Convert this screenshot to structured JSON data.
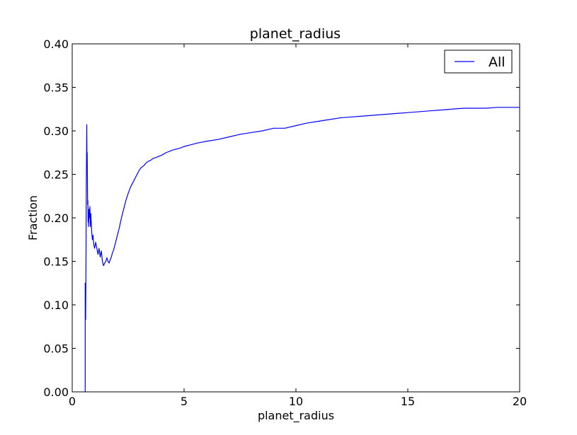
{
  "chart_data": {
    "type": "line",
    "title": "planet_radius",
    "xlabel": "planet_radius",
    "ylabel": "Fraction",
    "xlim": [
      0,
      20
    ],
    "ylim": [
      0,
      0.4
    ],
    "x_ticks": [
      "0",
      "5",
      "10",
      "15",
      "20"
    ],
    "y_ticks": [
      "0.00",
      "0.05",
      "0.10",
      "0.15",
      "0.20",
      "0.25",
      "0.30",
      "0.35",
      "0.40"
    ],
    "grid": false,
    "legend_position": "top-right",
    "series": [
      {
        "name": "All",
        "color": "#0000ff",
        "x": [
          0.58,
          0.58,
          0.59,
          0.6,
          0.61,
          0.62,
          0.63,
          0.64,
          0.65,
          0.66,
          0.67,
          0.68,
          0.69,
          0.7,
          0.71,
          0.72,
          0.73,
          0.75,
          0.77,
          0.79,
          0.81,
          0.83,
          0.85,
          0.87,
          0.9,
          0.93,
          0.96,
          1.0,
          1.05,
          1.1,
          1.15,
          1.2,
          1.25,
          1.3,
          1.35,
          1.4,
          1.45,
          1.5,
          1.55,
          1.6,
          1.65,
          1.7,
          1.75,
          1.8,
          1.85,
          1.9,
          2.0,
          2.1,
          2.2,
          2.3,
          2.4,
          2.5,
          2.6,
          2.7,
          2.8,
          2.9,
          3.0,
          3.1,
          3.2,
          3.3,
          3.4,
          3.5,
          3.6,
          3.8,
          4.0,
          4.2,
          4.5,
          4.8,
          5.0,
          5.3,
          5.6,
          6.0,
          6.5,
          7.0,
          7.5,
          8.0,
          8.5,
          9.0,
          9.5,
          10.0,
          10.5,
          11.0,
          11.5,
          12.0,
          12.5,
          13.0,
          13.5,
          14.0,
          14.5,
          15.0,
          15.5,
          16.0,
          16.5,
          17.0,
          17.5,
          18.0,
          18.5,
          19.0,
          19.5,
          20.0
        ],
        "values": [
          0.0,
          0.125,
          0.105,
          0.083,
          0.12,
          0.17,
          0.24,
          0.27,
          0.307,
          0.26,
          0.275,
          0.24,
          0.215,
          0.22,
          0.195,
          0.205,
          0.19,
          0.21,
          0.2,
          0.213,
          0.19,
          0.205,
          0.195,
          0.185,
          0.175,
          0.18,
          0.17,
          0.165,
          0.172,
          0.165,
          0.158,
          0.165,
          0.155,
          0.162,
          0.15,
          0.145,
          0.148,
          0.15,
          0.154,
          0.15,
          0.148,
          0.152,
          0.155,
          0.16,
          0.163,
          0.168,
          0.178,
          0.188,
          0.2,
          0.21,
          0.22,
          0.228,
          0.235,
          0.24,
          0.245,
          0.25,
          0.255,
          0.258,
          0.26,
          0.263,
          0.265,
          0.266,
          0.268,
          0.27,
          0.272,
          0.275,
          0.278,
          0.28,
          0.282,
          0.284,
          0.286,
          0.288,
          0.29,
          0.293,
          0.296,
          0.298,
          0.3,
          0.303,
          0.303,
          0.306,
          0.309,
          0.311,
          0.313,
          0.315,
          0.316,
          0.317,
          0.318,
          0.319,
          0.32,
          0.321,
          0.322,
          0.323,
          0.324,
          0.325,
          0.326,
          0.326,
          0.326,
          0.327,
          0.327,
          0.327
        ]
      }
    ]
  }
}
